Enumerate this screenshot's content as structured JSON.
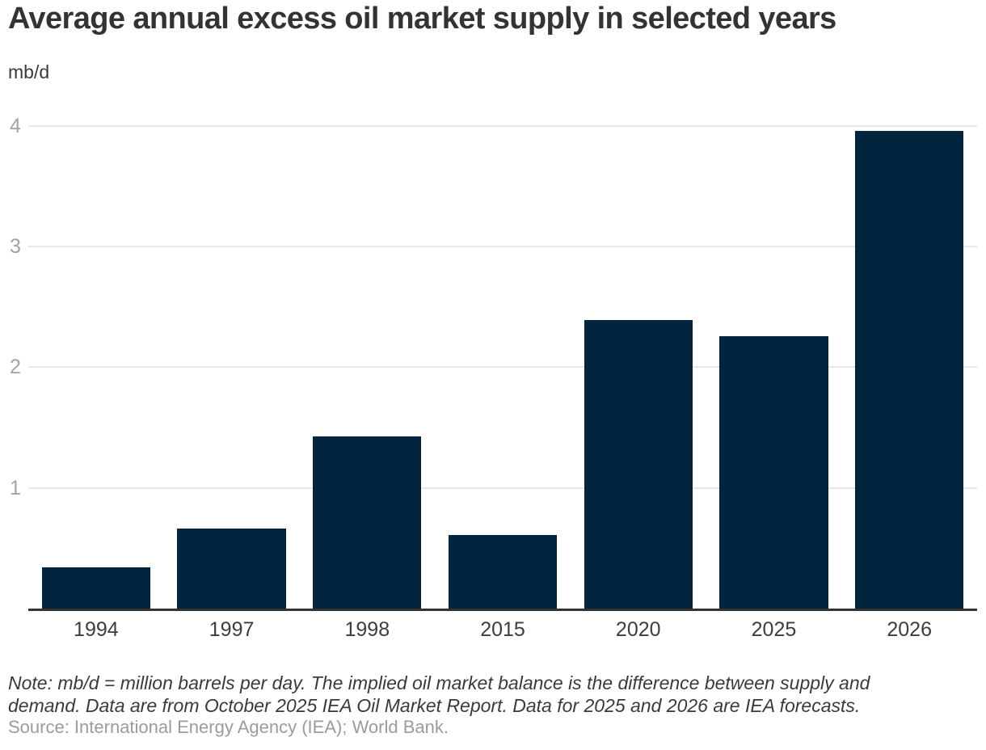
{
  "header": {
    "title": "Average annual excess oil market supply in selected years",
    "unit": "mb/d"
  },
  "chart_data": {
    "type": "bar",
    "categories": [
      "1994",
      "1997",
      "1998",
      "2015",
      "2020",
      "2025",
      "2026"
    ],
    "values": [
      0.34,
      0.66,
      1.43,
      0.61,
      2.39,
      2.26,
      3.96
    ],
    "title": "Average annual excess oil market supply in selected years",
    "xlabel": "",
    "ylabel": "mb/d",
    "ylim": [
      0,
      4.2
    ],
    "yticks": [
      1,
      2,
      3,
      4
    ],
    "grid": true,
    "legend_position": "none",
    "bar_color": "#01243f",
    "gridline_color": "#e7e7e7",
    "axis_line_color": "#333333",
    "ytick_color": "#a3a3a3",
    "xtick_color": "#3d3d3d"
  },
  "footer": {
    "note_lines": [
      "Note: mb/d = million barrels per day. The implied oil market balance is the difference between supply and",
      "demand. Data are from October 2025 IEA Oil Market Report. Data for 2025 and 2026 are IEA forecasts."
    ],
    "source": "Source: International Energy Agency (IEA); World Bank."
  }
}
